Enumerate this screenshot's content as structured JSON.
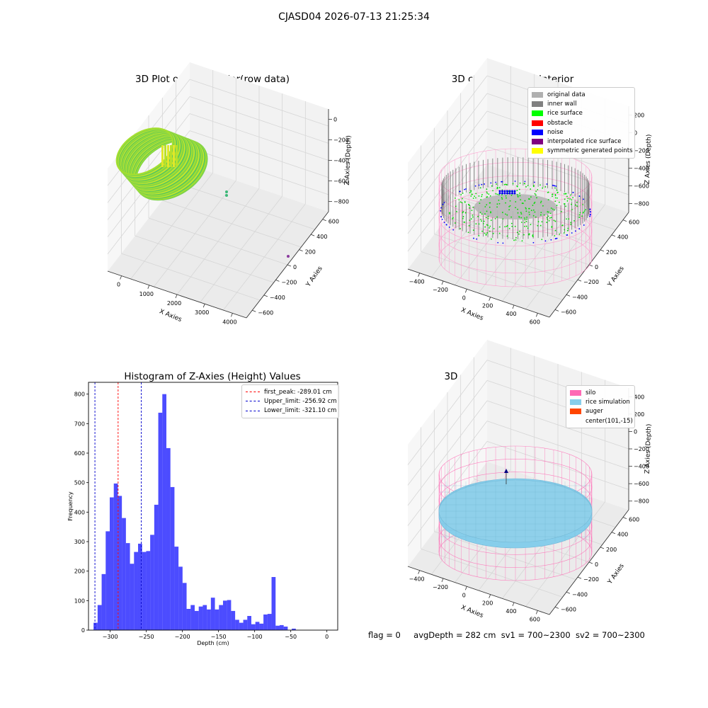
{
  "suptitle": "CJASD04 2026-07-13 21:25:34",
  "footer": {
    "flag": "flag = 0",
    "avg_depth": "avgDepth = 282 cm",
    "sv1": "sv1 = 700~2300",
    "sv2": "sv2 = 700~2300"
  },
  "panels": {
    "raw": {
      "title": "3D Plot of Silo Interior(row data)",
      "xlabel": "X Axies",
      "ylabel": "Y Axies",
      "zlabel": "Z Axies (Depth)",
      "xticks": [
        "0",
        "1000",
        "2000",
        "3000",
        "4000"
      ],
      "yticks": [
        "600",
        "400",
        "200",
        "0",
        "−200",
        "−400",
        "−600"
      ],
      "zticks": [
        "0",
        "−200",
        "−400",
        "−600",
        "−800"
      ]
    },
    "classify": {
      "title": "3D classify of Silo Interior",
      "xlabel": "X Axies",
      "ylabel": "Y Axies",
      "zlabel": "Z Axies (Depth)",
      "xticks": [
        "−400",
        "−200",
        "0",
        "200",
        "400",
        "600"
      ],
      "yticks": [
        "600",
        "400",
        "200",
        "0",
        "−200",
        "−400",
        "−600"
      ],
      "zticks": [
        "200",
        "0",
        "−200",
        "−400",
        "−600",
        "−800"
      ],
      "legend": [
        {
          "label": "original data",
          "color": "#b0b0b0"
        },
        {
          "label": "inner wall",
          "color": "#808080"
        },
        {
          "label": "rice surface",
          "color": "#00ff00"
        },
        {
          "label": "obstacle",
          "color": "#ff0000"
        },
        {
          "label": "noise",
          "color": "#0000ff"
        },
        {
          "label": "interpolated rice surface",
          "color": "#800080"
        },
        {
          "label": "symmetric generated points",
          "color": "#ffff00"
        }
      ]
    },
    "simulation": {
      "title": "3D simulation of Silo Interior",
      "xlabel": "X Axies",
      "ylabel": "Y Axies",
      "zlabel": "Z Axies (Depth)",
      "xticks": [
        "−400",
        "−200",
        "0",
        "200",
        "400",
        "600"
      ],
      "yticks": [
        "600",
        "400",
        "200",
        "0",
        "−200",
        "−400",
        "−600"
      ],
      "zticks": [
        "400",
        "200",
        "0",
        "−200",
        "−400",
        "−600",
        "−800"
      ],
      "legend": [
        {
          "label": "silo",
          "color": "#ff69b4"
        },
        {
          "label": "rice simulation",
          "color": "#87ceeb"
        },
        {
          "label": "auger",
          "color": "#ff4500"
        },
        {
          "label": "center(101,-15)",
          "color": ""
        }
      ]
    }
  },
  "chart_data": {
    "type": "bar",
    "title": "Histogram of Z-Axies (Height) Values",
    "xlabel": "Depth (cm)",
    "ylabel": "Frequency",
    "xlim": [
      -330,
      15
    ],
    "ylim": [
      0,
      840
    ],
    "bar_color": "#0000ff",
    "bin_start": -323,
    "bin_width": 5.6,
    "values": [
      25,
      85,
      190,
      335,
      450,
      497,
      455,
      380,
      295,
      225,
      265,
      293,
      265,
      268,
      323,
      425,
      737,
      800,
      617,
      485,
      283,
      215,
      160,
      72,
      85,
      65,
      80,
      85,
      70,
      110,
      70,
      85,
      100,
      102,
      65,
      35,
      25,
      35,
      48,
      20,
      28,
      22,
      53,
      55,
      180,
      15,
      17,
      12,
      0,
      5
    ],
    "xticks": [
      -300,
      -250,
      -200,
      -150,
      -100,
      -50,
      0
    ],
    "yticks": [
      0,
      100,
      200,
      300,
      400,
      500,
      600,
      700,
      800
    ],
    "vlines": [
      {
        "label": "first_peak: -289.01 cm",
        "x": -289.01,
        "color": "#ff0000"
      },
      {
        "label": "Upper_limit: -256.92 cm",
        "x": -256.92,
        "color": "#0000cd"
      },
      {
        "label": "Lower_limit: -321.10 cm",
        "x": -321.1,
        "color": "#0000cd"
      }
    ],
    "legend_position": "upper right"
  }
}
